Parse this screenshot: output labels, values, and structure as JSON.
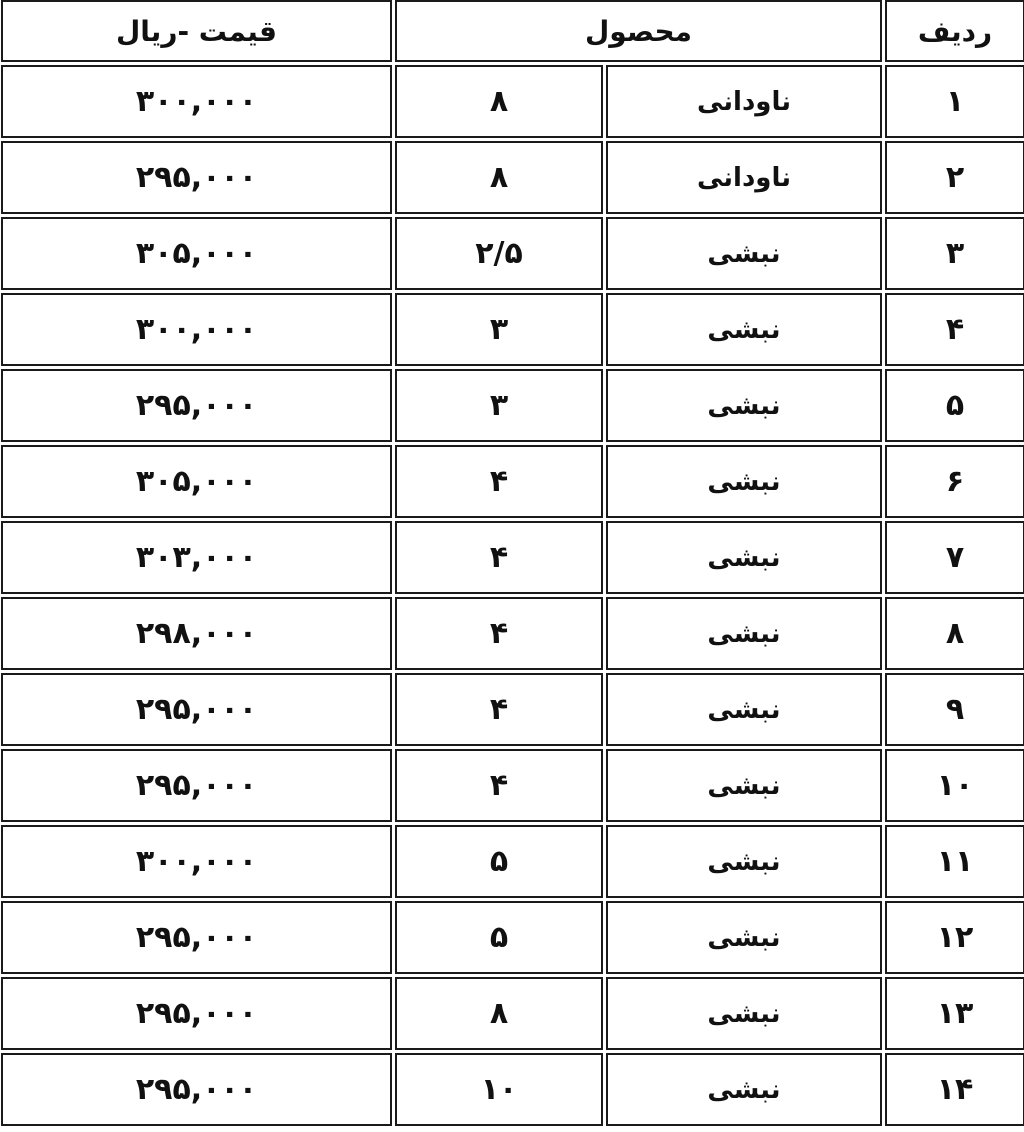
{
  "headers": {
    "row": "ردیف",
    "product": "محصول",
    "price": "قیمت -ریال"
  },
  "rows": [
    {
      "row": "۱",
      "name": "ناودانی",
      "size": "۸",
      "price": "۳۰۰,۰۰۰"
    },
    {
      "row": "۲",
      "name": "ناودانی",
      "size": "۸",
      "price": "۲۹۵,۰۰۰"
    },
    {
      "row": "۳",
      "name": "نبشی",
      "size": "۲/۵",
      "price": "۳۰۵,۰۰۰"
    },
    {
      "row": "۴",
      "name": "نبشی",
      "size": "۳",
      "price": "۳۰۰,۰۰۰"
    },
    {
      "row": "۵",
      "name": "نبشی",
      "size": "۳",
      "price": "۲۹۵,۰۰۰"
    },
    {
      "row": "۶",
      "name": "نبشی",
      "size": "۴",
      "price": "۳۰۵,۰۰۰"
    },
    {
      "row": "۷",
      "name": "نبشی",
      "size": "۴",
      "price": "۳۰۳,۰۰۰"
    },
    {
      "row": "۸",
      "name": "نبشی",
      "size": "۴",
      "price": "۲۹۸,۰۰۰"
    },
    {
      "row": "۹",
      "name": "نبشی",
      "size": "۴",
      "price": "۲۹۵,۰۰۰"
    },
    {
      "row": "۱۰",
      "name": "نبشی",
      "size": "۴",
      "price": "۲۹۵,۰۰۰"
    },
    {
      "row": "۱۱",
      "name": "نبشی",
      "size": "۵",
      "price": "۳۰۰,۰۰۰"
    },
    {
      "row": "۱۲",
      "name": "نبشی",
      "size": "۵",
      "price": "۲۹۵,۰۰۰"
    },
    {
      "row": "۱۳",
      "name": "نبشی",
      "size": "۸",
      "price": "۲۹۵,۰۰۰"
    },
    {
      "row": "۱۴",
      "name": "نبشی",
      "size": "۱۰",
      "price": "۲۹۵,۰۰۰"
    }
  ]
}
